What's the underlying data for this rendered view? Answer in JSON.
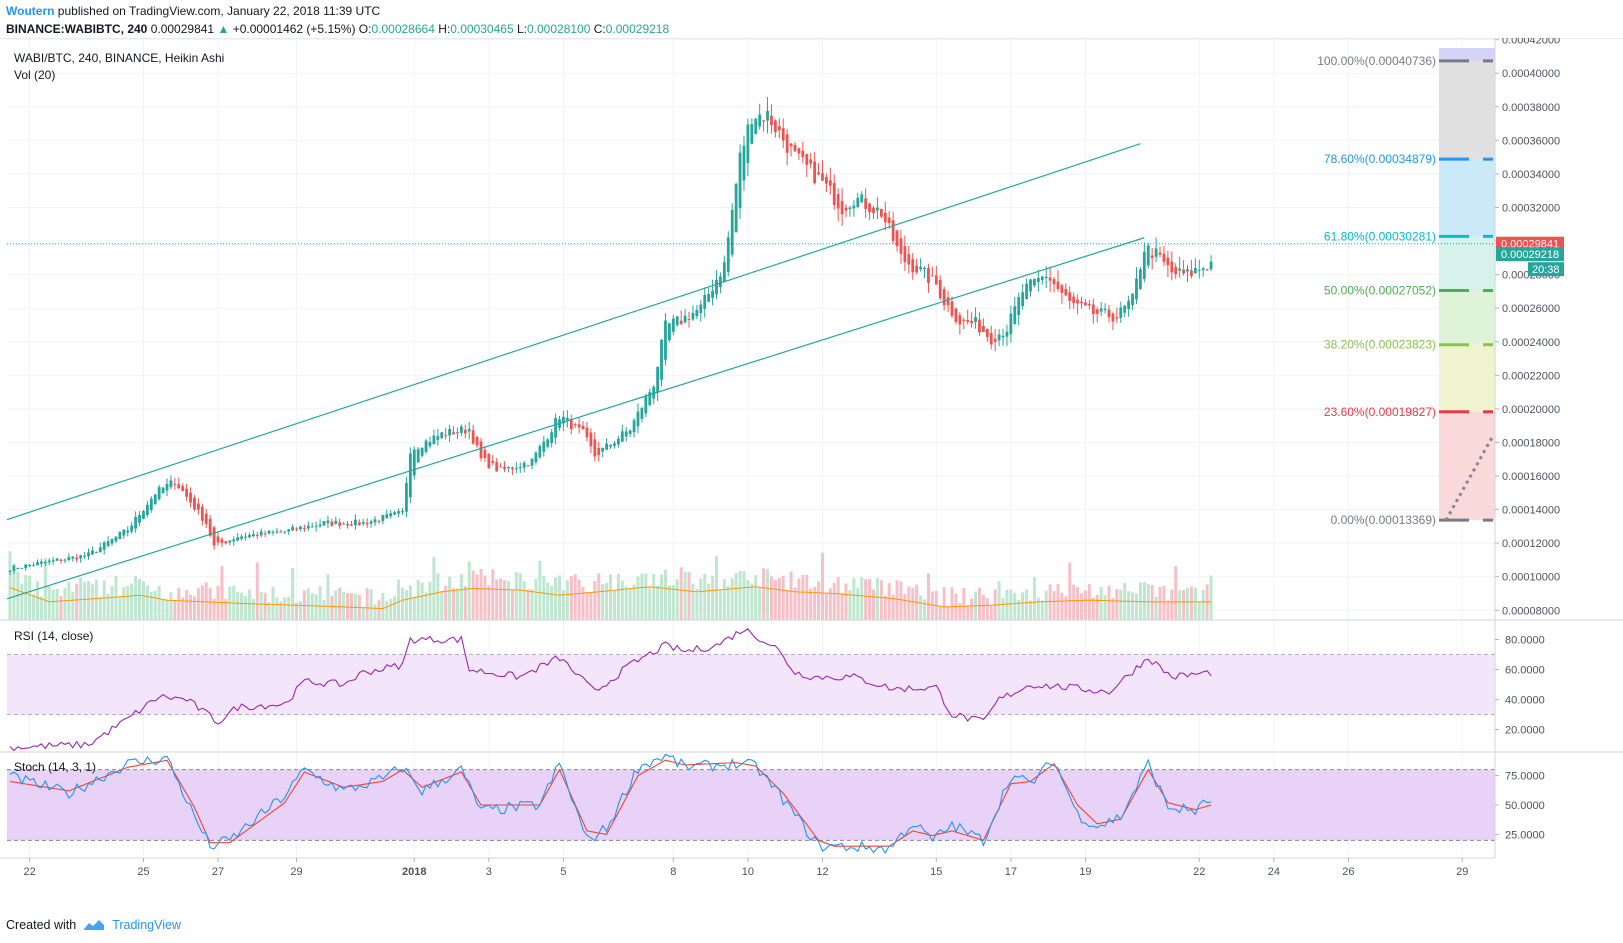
{
  "header": {
    "author": "Woutern",
    "published": "published on TradingView.com, January 22, 2018 11:39 UTC",
    "symbol": "BINANCE:WABIBTC, 240",
    "last": "0.00029841",
    "change_arrow": "▲",
    "change": "+0.00001462 (+5.15%)",
    "o_label": "O:",
    "o": "0.00028664",
    "h_label": "H:",
    "h": "0.00030465",
    "l_label": "L:",
    "l": "0.00028100",
    "c_label": "C:",
    "c": "0.00029218"
  },
  "main_pane": {
    "title": "WABI/BTC, 240, BINANCE, Heikin Ashi",
    "vol_label": "Vol (20)"
  },
  "rsi_pane": {
    "title": "RSI (14, close)"
  },
  "stoch_pane": {
    "title": "Stoch (14, 3, 1)"
  },
  "price_badges": {
    "last_price": "0.00029841",
    "close_price": "0.00029218",
    "countdown": "20:38"
  },
  "fib_levels": [
    {
      "label": "100.00%(0.00040736)",
      "price": 0.00040736,
      "color": "#787b86"
    },
    {
      "label": "78.60%(0.00034879)",
      "price": 0.00034879,
      "color": "#2196f3"
    },
    {
      "label": "61.80%(0.00030281)",
      "price": 0.00030281,
      "color": "#00bcd4"
    },
    {
      "label": "50.00%(0.00027052)",
      "price": 0.00027052,
      "color": "#4caf50"
    },
    {
      "label": "38.20%(0.00023823)",
      "price": 0.00023823,
      "color": "#8bc34a"
    },
    {
      "label": "23.60%(0.00019827)",
      "price": 0.00019827,
      "color": "#f23645"
    },
    {
      "label": "0.00%(0.00013369)",
      "price": 0.00013369,
      "color": "#787b86"
    }
  ],
  "x_axis_labels": [
    "22",
    "25",
    "27",
    "29",
    "2018",
    "3",
    "5",
    "8",
    "10",
    "12",
    "15",
    "17",
    "19",
    "22",
    "24",
    "26",
    "29"
  ],
  "footer": {
    "created_with": "Created with",
    "brand": "TradingView"
  },
  "colors": {
    "up": "#26a69a",
    "down": "#ef5350",
    "channel": "#26a69a",
    "rsi": "#9c27b0",
    "stoch_k": "#2196f3",
    "stoch_d": "#f44336"
  },
  "chart_data": {
    "type": "candlestick",
    "price_axis": {
      "ticks": [
        "0.00042000",
        "0.00040000",
        "0.00038000",
        "0.00036000",
        "0.00034000",
        "0.00032000",
        "0.00030000",
        "0.00028000",
        "0.00026000",
        "0.00024000",
        "0.00022000",
        "0.00020000",
        "0.00018000",
        "0.00016000",
        "0.00014000",
        "0.00012000",
        "0.00010000",
        "0.00008000"
      ],
      "ylim": [
        7.42e-05,
        0.000421
      ]
    },
    "rsi_axis": {
      "ticks": [
        "80.0000",
        "60.0000",
        "40.0000",
        "20.0000"
      ],
      "ylim": [
        5,
        93
      ],
      "bands": [
        30,
        70
      ]
    },
    "stoch_axis": {
      "ticks": [
        "75.0000",
        "50.0000",
        "25.0000"
      ],
      "ylim": [
        5,
        95
      ],
      "bands": [
        20,
        80
      ]
    },
    "price_anchors": [
      [
        0,
        0.000105
      ],
      [
        20,
        0.000113
      ],
      [
        30,
        0.000128
      ],
      [
        37,
        0.00015
      ],
      [
        42,
        0.000157
      ],
      [
        50,
        0.000132
      ],
      [
        52,
        0.000118
      ],
      [
        58,
        0.000124
      ],
      [
        70,
        0.000127
      ],
      [
        80,
        0.000132
      ],
      [
        90,
        0.000132
      ],
      [
        100,
        0.000138
      ],
      [
        102,
        0.000176
      ],
      [
        110,
        0.000185
      ],
      [
        117,
        0.000188
      ],
      [
        120,
        0.00017
      ],
      [
        125,
        0.000163
      ],
      [
        133,
        0.000169
      ],
      [
        140,
        0.000196
      ],
      [
        146,
        0.000185
      ],
      [
        149,
        0.000172
      ],
      [
        158,
        0.000188
      ],
      [
        164,
        0.000215
      ],
      [
        167,
        0.000249
      ],
      [
        171,
        0.000253
      ],
      [
        176,
        0.00026
      ],
      [
        182,
        0.000286
      ],
      [
        186,
        0.00035
      ],
      [
        189,
        0.000375
      ],
      [
        193,
        0.000375
      ],
      [
        200,
        0.00035
      ],
      [
        207,
        0.000335
      ],
      [
        212,
        0.00032
      ],
      [
        215,
        0.000326
      ],
      [
        222,
        0.000317
      ],
      [
        227,
        0.00029
      ],
      [
        232,
        0.000282
      ],
      [
        236,
        0.000274
      ],
      [
        238,
        0.000264
      ],
      [
        242,
        0.000252
      ],
      [
        246,
        0.000251
      ],
      [
        250,
        0.000242
      ],
      [
        254,
        0.000248
      ],
      [
        258,
        0.00027
      ],
      [
        264,
        0.00028
      ],
      [
        270,
        0.000263
      ],
      [
        276,
        0.000257
      ],
      [
        282,
        0.000255
      ],
      [
        286,
        0.000265
      ],
      [
        289,
        0.000296
      ],
      [
        292,
        0.000292
      ],
      [
        296,
        0.000281
      ],
      [
        300,
        0.00028
      ],
      [
        306,
        0.000287
      ]
    ],
    "volume_anchors": [
      [
        0,
        9.35e-05
      ],
      [
        10,
        8.5e-05
      ],
      [
        28,
        8.8e-05
      ],
      [
        33,
        8.9e-05
      ],
      [
        40,
        8.6e-05
      ],
      [
        60,
        8.4e-05
      ],
      [
        85,
        8.2e-05
      ],
      [
        95,
        8.1e-05
      ],
      [
        100,
        8.6e-05
      ],
      [
        110,
        9.1e-05
      ],
      [
        118,
        9.3e-05
      ],
      [
        130,
        9.2e-05
      ],
      [
        140,
        8.9e-05
      ],
      [
        150,
        9.1e-05
      ],
      [
        163,
        9.4e-05
      ],
      [
        175,
        9.1e-05
      ],
      [
        190,
        9.4e-05
      ],
      [
        200,
        9.1e-05
      ],
      [
        210,
        9e-05
      ],
      [
        225,
        8.7e-05
      ],
      [
        238,
        8.2e-05
      ],
      [
        250,
        8.3e-05
      ],
      [
        262,
        8.5e-05
      ],
      [
        275,
        8.6e-05
      ],
      [
        290,
        8.5e-05
      ],
      [
        306,
        8.5e-05
      ]
    ],
    "rsi_anchors": [
      [
        0,
        8
      ],
      [
        20,
        10
      ],
      [
        30,
        27
      ],
      [
        38,
        42
      ],
      [
        45,
        40
      ],
      [
        53,
        25
      ],
      [
        58,
        35
      ],
      [
        70,
        37
      ],
      [
        75,
        52
      ],
      [
        85,
        50
      ],
      [
        90,
        58
      ],
      [
        100,
        63
      ],
      [
        102,
        80
      ],
      [
        115,
        80
      ],
      [
        117,
        60
      ],
      [
        130,
        55
      ],
      [
        140,
        68
      ],
      [
        149,
        45
      ],
      [
        158,
        63
      ],
      [
        167,
        76
      ],
      [
        172,
        72
      ],
      [
        180,
        76
      ],
      [
        187,
        87
      ],
      [
        195,
        75
      ],
      [
        200,
        58
      ],
      [
        205,
        55
      ],
      [
        215,
        55
      ],
      [
        225,
        47
      ],
      [
        236,
        48
      ],
      [
        240,
        30
      ],
      [
        248,
        25
      ],
      [
        252,
        40
      ],
      [
        260,
        50
      ],
      [
        270,
        48
      ],
      [
        280,
        45
      ],
      [
        290,
        68
      ],
      [
        296,
        55
      ],
      [
        306,
        58
      ]
    ],
    "stoch_k_anchors": [
      [
        0,
        74
      ],
      [
        15,
        60
      ],
      [
        30,
        85
      ],
      [
        40,
        90
      ],
      [
        47,
        40
      ],
      [
        51,
        15
      ],
      [
        56,
        20
      ],
      [
        70,
        58
      ],
      [
        75,
        80
      ],
      [
        85,
        62
      ],
      [
        95,
        72
      ],
      [
        100,
        82
      ],
      [
        105,
        62
      ],
      [
        115,
        80
      ],
      [
        120,
        45
      ],
      [
        135,
        50
      ],
      [
        140,
        85
      ],
      [
        147,
        20
      ],
      [
        152,
        30
      ],
      [
        160,
        82
      ],
      [
        167,
        92
      ],
      [
        172,
        82
      ],
      [
        185,
        85
      ],
      [
        190,
        83
      ],
      [
        197,
        55
      ],
      [
        206,
        15
      ],
      [
        210,
        15
      ],
      [
        224,
        13
      ],
      [
        230,
        35
      ],
      [
        235,
        20
      ],
      [
        240,
        33
      ],
      [
        248,
        20
      ],
      [
        255,
        75
      ],
      [
        260,
        68
      ],
      [
        266,
        88
      ],
      [
        272,
        42
      ],
      [
        277,
        32
      ],
      [
        283,
        40
      ],
      [
        290,
        85
      ],
      [
        295,
        48
      ],
      [
        302,
        45
      ],
      [
        306,
        55
      ]
    ],
    "stoch_d_anchors": [
      [
        0,
        70
      ],
      [
        15,
        62
      ],
      [
        30,
        82
      ],
      [
        40,
        88
      ],
      [
        47,
        48
      ],
      [
        51,
        18
      ],
      [
        56,
        18
      ],
      [
        70,
        52
      ],
      [
        75,
        78
      ],
      [
        85,
        65
      ],
      [
        95,
        70
      ],
      [
        100,
        80
      ],
      [
        105,
        65
      ],
      [
        115,
        78
      ],
      [
        120,
        50
      ],
      [
        135,
        50
      ],
      [
        140,
        80
      ],
      [
        147,
        28
      ],
      [
        152,
        25
      ],
      [
        160,
        75
      ],
      [
        167,
        88
      ],
      [
        172,
        84
      ],
      [
        185,
        86
      ],
      [
        190,
        83
      ],
      [
        197,
        60
      ],
      [
        206,
        20
      ],
      [
        210,
        15
      ],
      [
        224,
        15
      ],
      [
        230,
        28
      ],
      [
        235,
        24
      ],
      [
        240,
        28
      ],
      [
        248,
        20
      ],
      [
        255,
        68
      ],
      [
        260,
        70
      ],
      [
        266,
        85
      ],
      [
        272,
        50
      ],
      [
        277,
        34
      ],
      [
        283,
        38
      ],
      [
        290,
        80
      ],
      [
        295,
        52
      ],
      [
        302,
        46
      ],
      [
        306,
        50
      ]
    ],
    "trend_lines": [
      {
        "x1": 0,
        "y1": 0.000134,
        "x2": 288,
        "y2": 0.000358
      },
      {
        "x1": 0,
        "y1": 8.68e-05,
        "x2": 289,
        "y2": 0.000302
      }
    ],
    "current_price_line": 0.00029841,
    "last_close": 0.00029218,
    "n_bars": 307,
    "grid": true
  }
}
